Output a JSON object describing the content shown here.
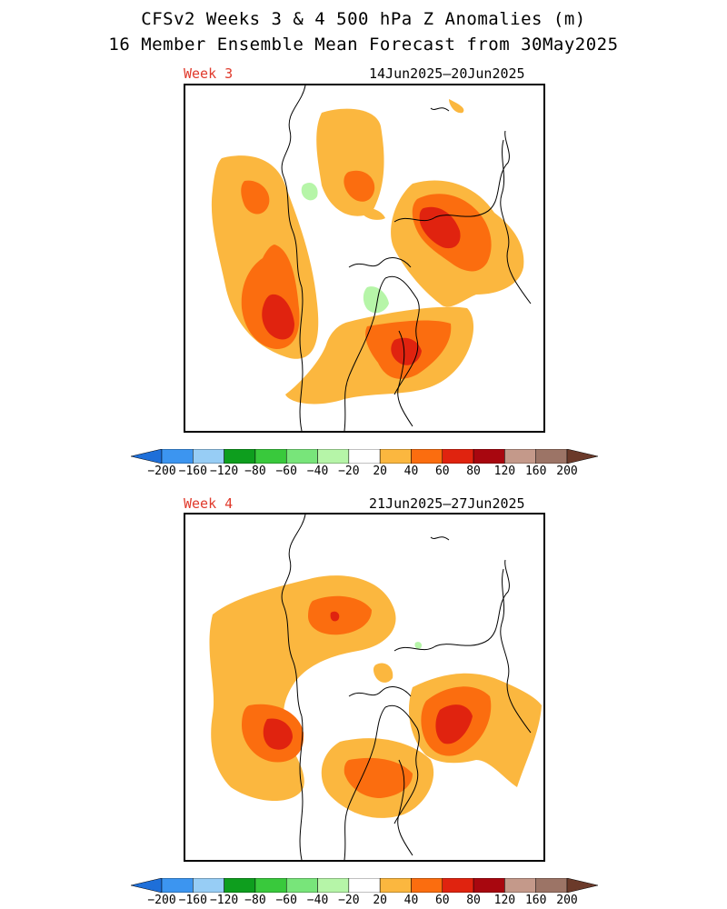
{
  "title_line1": "CFSv2 Weeks 3 & 4 500 hPa Z Anomalies (m)",
  "title_line2": "16 Member Ensemble Mean Forecast from 30May2025",
  "panels": [
    {
      "week_label": "Week 3",
      "date_range": "14Jun2025–20Jun2025"
    },
    {
      "week_label": "Week 4",
      "date_range": "21Jun2025–27Jun2025"
    }
  ],
  "colorbar": {
    "labels": [
      "−200",
      "−160",
      "−120",
      "−80",
      "−60",
      "−40",
      "−20",
      "20",
      "40",
      "60",
      "80",
      "120",
      "160",
      "200"
    ],
    "colors": [
      "#1e6fd9",
      "#3c95f0",
      "#97cdf5",
      "#0e9e1e",
      "#39c93c",
      "#78e57a",
      "#b6f5a8",
      "#ffffff",
      "#fbb73f",
      "#fb6d0f",
      "#e0230f",
      "#a8070f",
      "#c4998a",
      "#9c7466",
      "#6b3a2a"
    ]
  },
  "legend_colors": {
    "pos20": "#fbb73f",
    "pos40": "#fb6d0f",
    "pos60": "#e0230f",
    "neg20": "#b6f5a8",
    "neg40": "#78e57a"
  }
}
